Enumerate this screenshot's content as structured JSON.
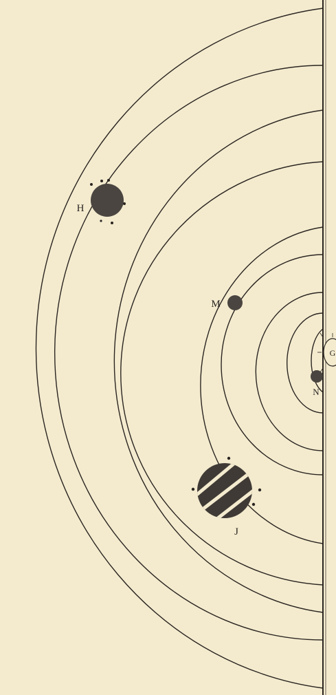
{
  "planets": [
    {
      "label": "H"
    },
    {
      "label": "M"
    },
    {
      "label": "J"
    },
    {
      "label": "N"
    },
    {
      "label": "G"
    }
  ]
}
